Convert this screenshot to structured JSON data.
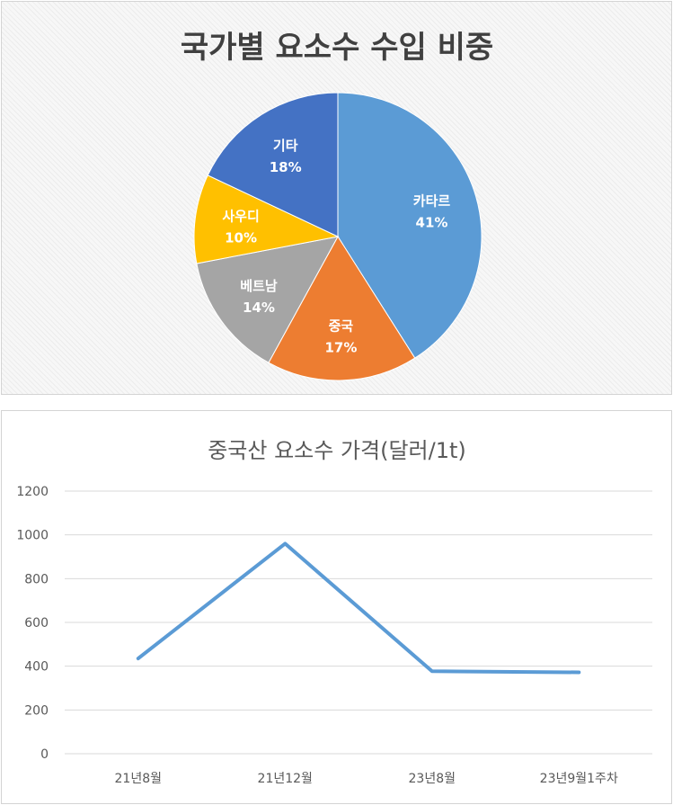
{
  "chart_data": [
    {
      "type": "pie",
      "title": "국가별 요소수 수입 비중",
      "slices": [
        {
          "label": "카타르",
          "value": 41,
          "display": "41%",
          "color": "#5b9bd5"
        },
        {
          "label": "중국",
          "value": 17,
          "display": "17%",
          "color": "#ed7d31"
        },
        {
          "label": "베트남",
          "value": 14,
          "display": "14%",
          "color": "#a5a5a5"
        },
        {
          "label": "사우디",
          "value": 10,
          "display": "10%",
          "color": "#ffc000"
        },
        {
          "label": "기타",
          "value": 18,
          "display": "18%",
          "color": "#4472c4"
        }
      ],
      "legend": "none",
      "data_labels": "inside"
    },
    {
      "type": "line",
      "title": "중국산 요소수 가격(달러/1t)",
      "categories": [
        "21년8월",
        "21년12월",
        "23년8월",
        "23년9월1주차"
      ],
      "series": [
        {
          "values": [
            435,
            960,
            377,
            372
          ],
          "color": "#5b9bd5"
        }
      ],
      "ylim": [
        0,
        1200
      ],
      "yticks": [
        0,
        200,
        400,
        600,
        800,
        1000,
        1200
      ],
      "grid": true,
      "legend": "none"
    }
  ]
}
